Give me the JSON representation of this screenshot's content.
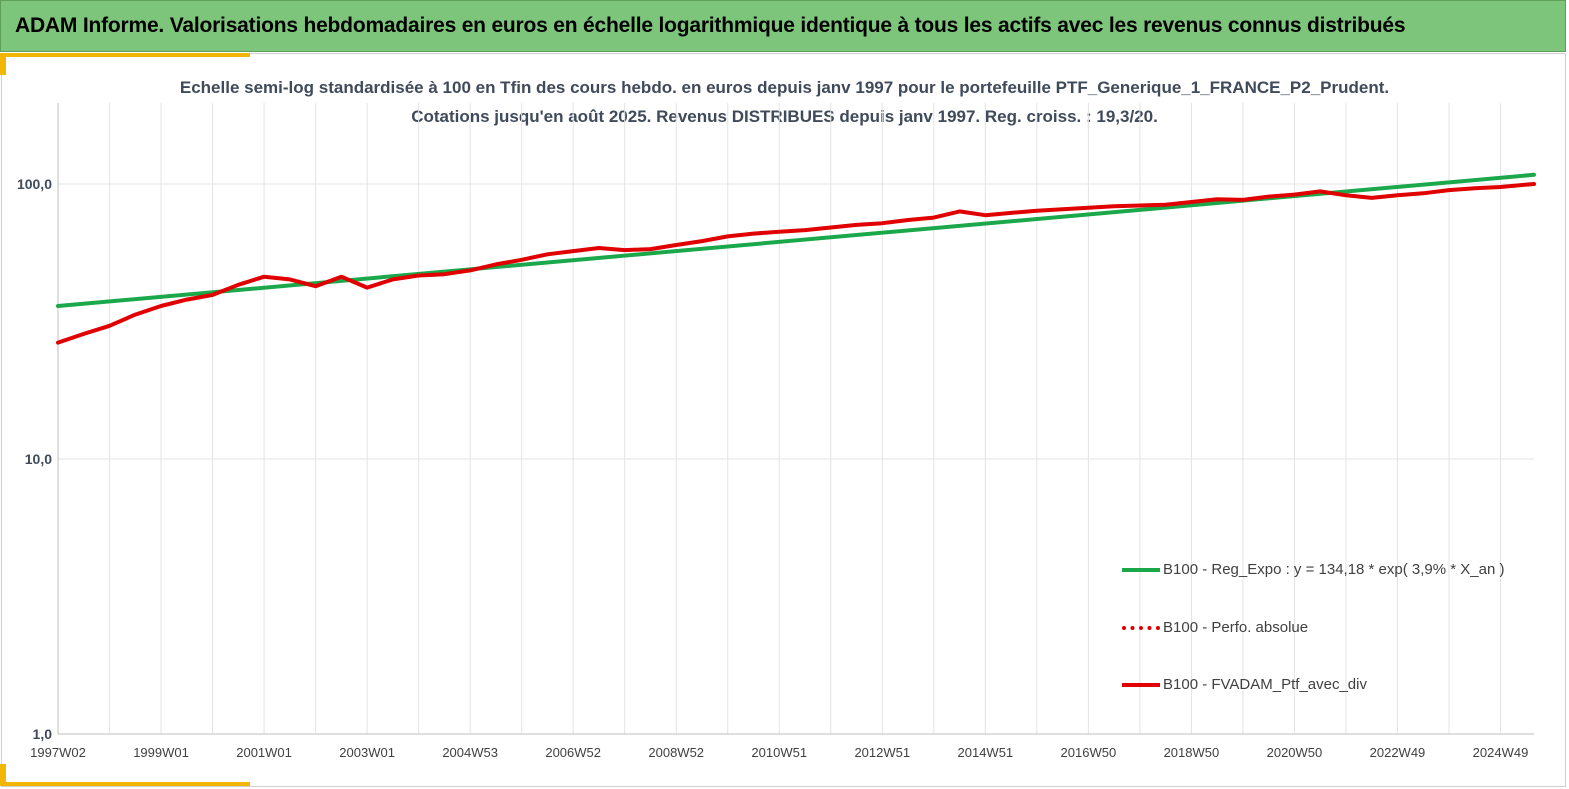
{
  "banner": {
    "title": "ADAM Informe. Valorisations hebdomadaires en euros en échelle logarithmique identique à tous les actifs avec les revenus connus distribués",
    "background": "#7dc57a"
  },
  "chart_data": {
    "type": "line",
    "title": "Echelle semi-log standardisée à 100 en Tfin des cours hebdo.  en euros depuis janv 1997 pour le portefeuille PTF_Generique_1_FRANCE_P2_Prudent.",
    "subtitle": "Cotations  jusqu'en août 2025. Revenus DISTRIBUES depuis janv 1997. Reg. croiss. : 19,3/20.",
    "y_scale": "log",
    "ylim": [
      1,
      200
    ],
    "y_ticks": [
      {
        "value": 1,
        "label": "1,0"
      },
      {
        "value": 10,
        "label": "10,0"
      },
      {
        "value": 100,
        "label": "100,0"
      }
    ],
    "xlim": [
      1997.0,
      2025.65
    ],
    "x_ticks": [
      {
        "value": 1997.0,
        "label": "1997W02"
      },
      {
        "value": 1999.0,
        "label": "1999W01"
      },
      {
        "value": 2001.0,
        "label": "2001W01"
      },
      {
        "value": 2003.0,
        "label": "2003W01"
      },
      {
        "value": 2005.0,
        "label": "2004W53"
      },
      {
        "value": 2007.0,
        "label": "2006W52"
      },
      {
        "value": 2009.0,
        "label": "2008W52"
      },
      {
        "value": 2011.0,
        "label": "2010W51"
      },
      {
        "value": 2013.0,
        "label": "2012W51"
      },
      {
        "value": 2015.0,
        "label": "2014W51"
      },
      {
        "value": 2017.0,
        "label": "2016W50"
      },
      {
        "value": 2019.0,
        "label": "2018W50"
      },
      {
        "value": 2021.0,
        "label": "2020W50"
      },
      {
        "value": 2023.0,
        "label": "2022W49"
      },
      {
        "value": 2025.0,
        "label": "2024W49"
      }
    ],
    "grid": true,
    "legend_position": "bottom-right",
    "series": [
      {
        "name": "B100 - Reg_Expo : y = 134,18 * exp( 3,9% *  X_an )",
        "color": "#1aa84a",
        "style": "solid",
        "x": [
          1997.0,
          2025.65
        ],
        "values": [
          36.0,
          108.0
        ]
      },
      {
        "name": "B100 - Perfo. absolue",
        "color": "#e00000",
        "style": "dotted",
        "x": [],
        "values": []
      },
      {
        "name": "B100 - FVADAM_Ptf_avec_div",
        "color": "#e00000",
        "style": "solid",
        "x": [
          1997.0,
          1997.5,
          1998.0,
          1998.5,
          1999.0,
          1999.5,
          2000.0,
          2000.5,
          2001.0,
          2001.5,
          2002.0,
          2002.5,
          2003.0,
          2003.5,
          2004.0,
          2004.5,
          2005.0,
          2005.5,
          2006.0,
          2006.5,
          2007.0,
          2007.5,
          2008.0,
          2008.5,
          2009.0,
          2009.5,
          2010.0,
          2010.5,
          2011.0,
          2011.5,
          2012.0,
          2012.5,
          2013.0,
          2013.5,
          2014.0,
          2014.5,
          2015.0,
          2015.5,
          2016.0,
          2016.5,
          2017.0,
          2017.5,
          2018.0,
          2018.5,
          2019.0,
          2019.5,
          2020.0,
          2020.5,
          2021.0,
          2021.5,
          2022.0,
          2022.5,
          2023.0,
          2023.5,
          2024.0,
          2024.5,
          2025.0,
          2025.5,
          2025.65
        ],
        "values": [
          26.5,
          28.5,
          30.5,
          33.5,
          36.0,
          38.0,
          39.5,
          43.0,
          46.0,
          45.0,
          42.5,
          46.0,
          42.0,
          45.0,
          46.5,
          47.0,
          48.5,
          51.0,
          53.0,
          55.5,
          57.0,
          58.5,
          57.5,
          58.0,
          60.0,
          62.0,
          64.5,
          66.0,
          67.0,
          68.0,
          69.5,
          71.0,
          72.0,
          74.0,
          75.5,
          79.5,
          77.0,
          78.5,
          80.0,
          81.0,
          82.0,
          83.0,
          83.5,
          84.0,
          86.0,
          88.0,
          87.5,
          90.0,
          91.5,
          94.0,
          91.0,
          89.0,
          91.0,
          92.5,
          95.0,
          96.5,
          97.5,
          99.5,
          100.0
        ]
      }
    ]
  }
}
